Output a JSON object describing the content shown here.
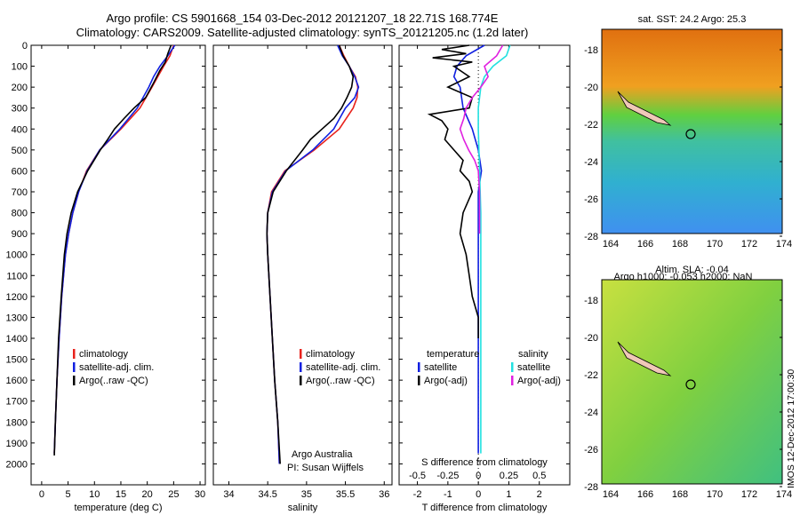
{
  "title_line1": "Argo profile: CS 5901668_154 03-Dec-2012 20121207_18 22.71S 168.774E",
  "title_line2": "Climatology: CARS2009. Satellite-adjusted climatology: synTS_20121205.nc (1.2d later)",
  "colors": {
    "climatology": "#e8221c",
    "satellite": "#1020e0",
    "argo": "#000000",
    "salinity_sat": "#22e0e0",
    "salinity_argo": "#e020e0"
  },
  "chart_data": [
    {
      "type": "line",
      "name": "temperature",
      "xlabel": "temperature (deg C)",
      "xlim": [
        -2,
        31
      ],
      "ylim": [
        2100,
        0
      ],
      "xticks": [
        "0",
        "5",
        "10",
        "15",
        "20",
        "25",
        "30"
      ],
      "yticks": [
        "0",
        "100",
        "200",
        "300",
        "400",
        "500",
        "600",
        "700",
        "800",
        "900",
        "1000",
        "1100",
        "1200",
        "1300",
        "1400",
        "1500",
        "1600",
        "1700",
        "1800",
        "1900",
        "2000"
      ],
      "legend": [
        "climatology",
        "satellite-adj. clim.",
        "Argo(..raw -QC)"
      ],
      "series": [
        {
          "name": "climatology",
          "depth": [
            0,
            50,
            100,
            150,
            200,
            300,
            400,
            500,
            600,
            700,
            800,
            900,
            1000,
            1200,
            1400,
            1600,
            1800,
            1950
          ],
          "values": [
            25.0,
            24.3,
            23.1,
            22.0,
            20.9,
            18.6,
            15.0,
            11.0,
            8.5,
            7.0,
            5.9,
            5.1,
            4.5,
            3.8,
            3.3,
            2.9,
            2.6,
            2.4
          ]
        },
        {
          "name": "satellite-adj. clim.",
          "depth": [
            0,
            50,
            100,
            150,
            200,
            300,
            400,
            500,
            600,
            700,
            800,
            900,
            1000,
            1200,
            1400,
            1600,
            1800,
            1950
          ],
          "values": [
            25.2,
            23.9,
            22.4,
            21.2,
            20.3,
            18.1,
            14.8,
            11.0,
            8.6,
            7.0,
            5.9,
            5.1,
            4.5,
            3.8,
            3.3,
            2.9,
            2.6,
            2.4
          ]
        },
        {
          "name": "Argo(..raw -QC)",
          "depth": [
            0,
            40,
            80,
            120,
            180,
            250,
            300,
            350,
            400,
            450,
            500,
            600,
            700,
            800,
            900,
            1000,
            1200,
            1400,
            1600,
            1800,
            1960
          ],
          "values": [
            24.5,
            23.9,
            23.4,
            22.4,
            21.2,
            19.7,
            17.5,
            15.6,
            13.8,
            12.5,
            11.1,
            8.7,
            6.8,
            5.6,
            4.8,
            4.3,
            3.7,
            3.2,
            2.9,
            2.6,
            2.4
          ]
        }
      ]
    },
    {
      "type": "line",
      "name": "salinity",
      "xlabel": "salinity",
      "xlim": [
        33.8,
        36.1
      ],
      "ylim": [
        2100,
        0
      ],
      "xticks": [
        "34",
        "34.5",
        "35",
        "35.5",
        "36"
      ],
      "legend": [
        "climatology",
        "satellite-adj. clim.",
        "Argo(..raw -QC)"
      ],
      "annotation": [
        "Argo Australia",
        "PI: Susan Wijffels"
      ],
      "series": [
        {
          "name": "climatology",
          "depth": [
            0,
            50,
            100,
            150,
            200,
            250,
            300,
            400,
            500,
            600,
            700,
            800,
            900,
            1000,
            1200,
            1400,
            1600,
            1800,
            2000
          ],
          "values": [
            35.42,
            35.48,
            35.55,
            35.63,
            35.66,
            35.65,
            35.6,
            35.42,
            35.1,
            34.72,
            34.55,
            34.5,
            34.49,
            34.5,
            34.53,
            34.56,
            34.59,
            34.63,
            34.65
          ]
        },
        {
          "name": "satellite-adj. clim.",
          "depth": [
            0,
            50,
            100,
            150,
            200,
            250,
            300,
            400,
            500,
            600,
            700,
            800,
            900,
            1000,
            1200,
            1400,
            1600,
            1800,
            2000
          ],
          "values": [
            35.4,
            35.46,
            35.55,
            35.62,
            35.67,
            35.62,
            35.5,
            35.35,
            35.08,
            34.73,
            34.56,
            34.5,
            34.49,
            34.5,
            34.53,
            34.56,
            34.59,
            34.63,
            34.65
          ]
        },
        {
          "name": "Argo(..raw -QC)",
          "depth": [
            0,
            50,
            100,
            150,
            200,
            250,
            300,
            350,
            400,
            450,
            500,
            600,
            700,
            800,
            900,
            1000,
            1200,
            1400,
            1600,
            1800,
            2000
          ],
          "values": [
            35.42,
            35.47,
            35.55,
            35.6,
            35.58,
            35.52,
            35.45,
            35.35,
            35.2,
            35.05,
            34.95,
            34.74,
            34.57,
            34.5,
            34.49,
            34.5,
            34.53,
            34.56,
            34.59,
            34.63,
            34.66
          ]
        }
      ]
    },
    {
      "type": "line",
      "name": "difference",
      "xlabel": "T difference from climatology",
      "xlabel_top": "S difference from climatology",
      "xlim": [
        -2.6,
        3.0
      ],
      "ylim": [
        2100,
        0
      ],
      "xticks": [
        "-2",
        "-1",
        "0",
        "1",
        "2"
      ],
      "sticks": [
        "-0.5",
        "-0.25",
        "0",
        "0.25",
        "0.5"
      ],
      "legend_t": [
        "temperature",
        "satellite",
        "Argo(-adj)"
      ],
      "legend_s": [
        "salinity",
        "satellite",
        "Argo(-adj)"
      ],
      "series": [
        {
          "name": "temperature satellite",
          "depth": [
            0,
            50,
            100,
            150,
            200,
            300,
            400,
            500,
            600,
            700,
            800,
            1000,
            1400,
            1950
          ],
          "values": [
            0.2,
            -0.4,
            -0.7,
            -0.8,
            -0.6,
            -0.5,
            -0.2,
            0.0,
            0.1,
            0.0,
            0.0,
            0.0,
            0.0,
            0.0
          ]
        },
        {
          "name": "temperature Argo(-adj)",
          "depth": [
            0,
            20,
            40,
            60,
            80,
            100,
            150,
            200,
            250,
            300,
            330,
            360,
            400,
            450,
            500,
            550,
            600,
            650,
            700,
            800,
            900,
            1000,
            1100,
            1200,
            1300,
            1400
          ],
          "values": [
            -0.3,
            -1.2,
            -0.4,
            -1.5,
            -0.2,
            -0.8,
            -0.3,
            -1.0,
            -0.2,
            -0.3,
            -1.6,
            -1.2,
            -1.0,
            -1.1,
            -0.8,
            -0.5,
            -0.6,
            -0.3,
            -0.2,
            -0.5,
            -0.6,
            -0.4,
            -0.3,
            -0.2,
            0.0,
            0.0
          ]
        },
        {
          "name": "salinity satellite",
          "depth": [
            0,
            50,
            100,
            150,
            200,
            300,
            400,
            600,
            800,
            1000,
            1400,
            1950
          ],
          "values": [
            0.26,
            0.23,
            0.12,
            0.05,
            0.02,
            0.0,
            0.0,
            0.01,
            0.02,
            0.02,
            0.02,
            0.02
          ]
        },
        {
          "name": "salinity Argo(-adj)",
          "depth": [
            0,
            50,
            100,
            150,
            200,
            250,
            300,
            350,
            400,
            450,
            500,
            550,
            600,
            700,
            800,
            900
          ],
          "values": [
            0.2,
            0.15,
            0.05,
            0.08,
            0.02,
            -0.05,
            -0.1,
            -0.12,
            -0.15,
            -0.12,
            -0.08,
            -0.03,
            0.0,
            0.01,
            0.01,
            0.01
          ]
        }
      ]
    }
  ],
  "maps": [
    {
      "title": "sat. SST: 24.2 Argo: 25.3",
      "title2": "",
      "yticks": [
        "-18",
        "-20",
        "-22",
        "-24",
        "-26",
        "-28"
      ],
      "xticks": [
        "164",
        "166",
        "168",
        "170",
        "172",
        "174"
      ]
    },
    {
      "title": "Altim. SLA: -0.04",
      "title2": "Argo h1000: -0.053 h2000: NaN",
      "yticks": [
        "-18",
        "-20",
        "-22",
        "-24",
        "-26",
        "-28"
      ],
      "xticks": [
        "164",
        "166",
        "168",
        "170",
        "172",
        "174"
      ]
    }
  ],
  "side_caption": "IMOS 12-Dec-2012 17:00:30"
}
